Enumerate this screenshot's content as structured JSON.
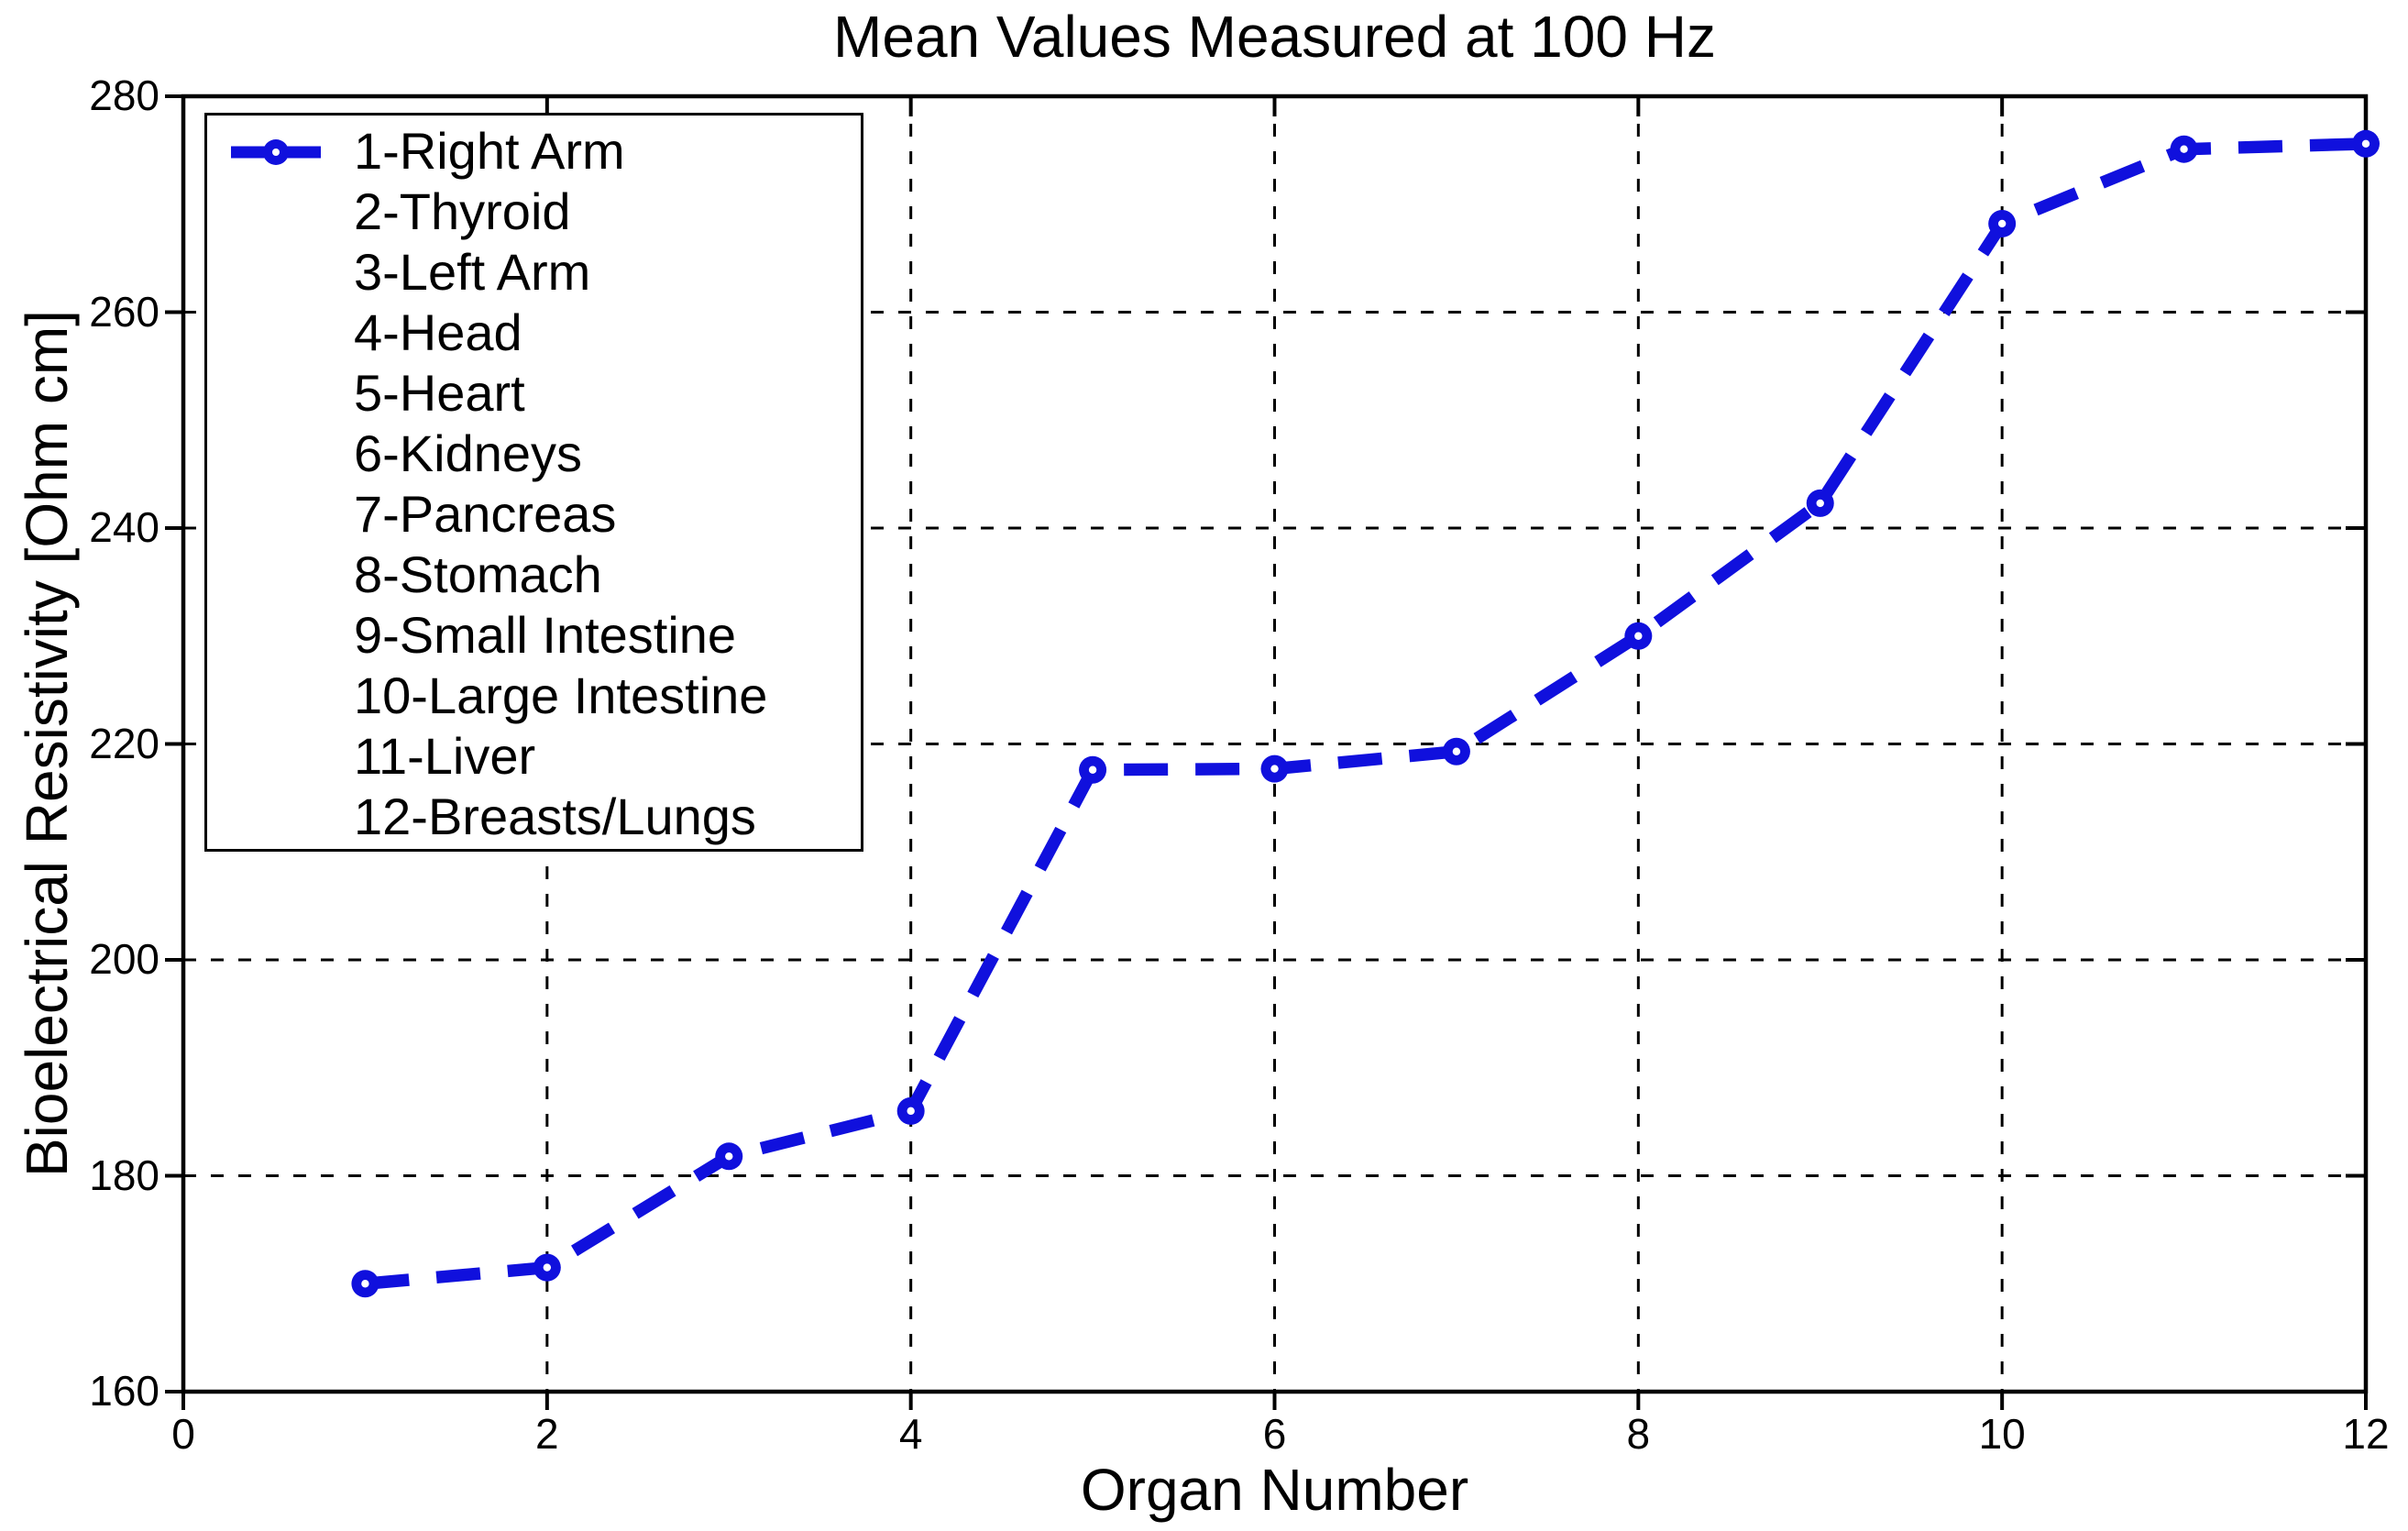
{
  "chart_data": {
    "type": "line",
    "title": "Mean Values Measured at 100 Hz",
    "xlabel": "Organ Number",
    "ylabel": "Bioelectrical Resistivity [Ohm cm]",
    "xlim": [
      0,
      12
    ],
    "ylim": [
      160,
      280
    ],
    "xticks": [
      0,
      2,
      4,
      6,
      8,
      10,
      12
    ],
    "yticks": [
      160,
      180,
      200,
      220,
      240,
      260,
      280
    ],
    "grid": true,
    "line_style": "dashed",
    "marker": "circle",
    "x": [
      1,
      2,
      3,
      4,
      5,
      6,
      7,
      8,
      9,
      10,
      11,
      12
    ],
    "values": [
      170,
      171.5,
      181.8,
      186,
      217.6,
      217.7,
      219.3,
      230,
      242.3,
      268.2,
      275.1,
      275.6
    ],
    "legend_position": "upper left",
    "legend": [
      "1-Right Arm",
      "2-Thyroid",
      "3-Left Arm",
      "4-Head",
      "5-Heart",
      "6-Kidneys",
      "7-Pancreas",
      "8-Stomach",
      "9-Small Intestine",
      "10-Large Intestine",
      "11-Liver",
      "12-Breasts/Lungs"
    ],
    "colors": {
      "line": "#1010dd",
      "axis": "#000000",
      "background": "#ffffff"
    }
  }
}
